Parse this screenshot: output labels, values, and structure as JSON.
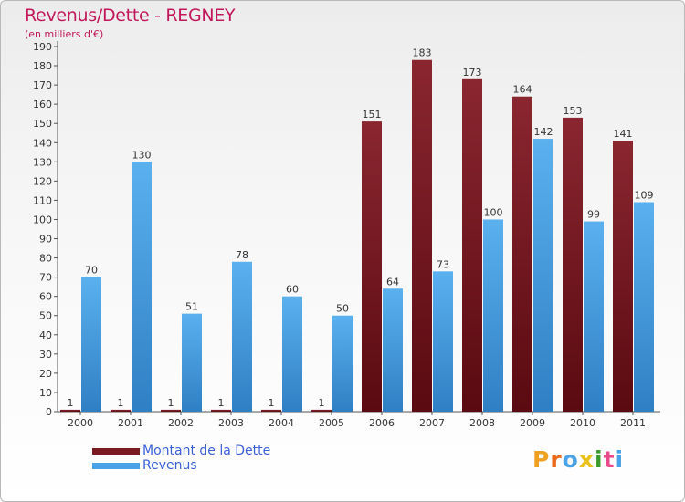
{
  "title": "Revenus/Dette - REGNEY",
  "subtitle": "(en milliers d'€)",
  "legend": {
    "debt_label": "Montant de la Dette",
    "revenue_label": "Revenus"
  },
  "logo": {
    "text": "Proxiti"
  },
  "colors": {
    "debt": "#7a1a22",
    "revenue": "#4aa3e6",
    "title": "#c2185b",
    "legend_text": "#3a5fd9"
  },
  "chart_data": {
    "type": "bar",
    "title": "Revenus/Dette - REGNEY",
    "subtitle": "(en milliers d'€)",
    "categories": [
      "2000",
      "2001",
      "2002",
      "2003",
      "2004",
      "2005",
      "2006",
      "2007",
      "2008",
      "2009",
      "2010",
      "2011"
    ],
    "series": [
      {
        "name": "Montant de la Dette",
        "values": [
          1,
          1,
          1,
          1,
          1,
          1,
          151,
          183,
          173,
          164,
          153,
          141
        ]
      },
      {
        "name": "Revenus",
        "values": [
          70,
          130,
          51,
          78,
          60,
          50,
          64,
          73,
          100,
          142,
          99,
          109
        ]
      }
    ],
    "ylim": [
      0,
      190
    ],
    "yticks": [
      0,
      10,
      20,
      30,
      40,
      50,
      60,
      70,
      80,
      90,
      100,
      110,
      120,
      130,
      140,
      150,
      160,
      170,
      180,
      190
    ],
    "grid": false,
    "legend_position": "bottom-left"
  }
}
